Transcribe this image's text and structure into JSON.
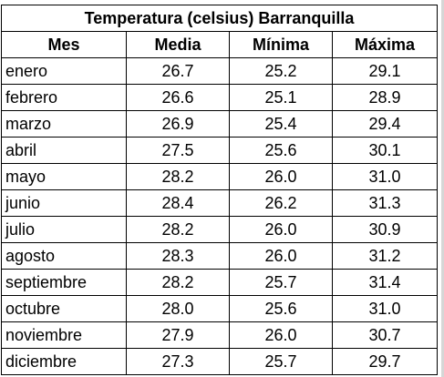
{
  "table": {
    "title": "Temperatura (celsius) Barranquilla",
    "headers": {
      "mes": "Mes",
      "media": "Media",
      "minima": "Mínima",
      "maxima": "Máxima"
    },
    "rows": [
      {
        "mes": "enero",
        "media": "26.7",
        "minima": "25.2",
        "maxima": "29.1"
      },
      {
        "mes": "febrero",
        "media": "26.6",
        "minima": "25.1",
        "maxima": "28.9"
      },
      {
        "mes": "marzo",
        "media": "26.9",
        "minima": "25.4",
        "maxima": "29.4"
      },
      {
        "mes": "abril",
        "media": "27.5",
        "minima": "25.6",
        "maxima": "30.1"
      },
      {
        "mes": "mayo",
        "media": "28.2",
        "minima": "26.0",
        "maxima": "31.0"
      },
      {
        "mes": "junio",
        "media": "28.4",
        "minima": "26.2",
        "maxima": "31.3"
      },
      {
        "mes": "julio",
        "media": "28.2",
        "minima": "26.0",
        "maxima": "30.9"
      },
      {
        "mes": "agosto",
        "media": "28.3",
        "minima": "26.0",
        "maxima": "31.2"
      },
      {
        "mes": "septiembre",
        "media": "28.2",
        "minima": "25.7",
        "maxima": "31.4"
      },
      {
        "mes": "octubre",
        "media": "28.0",
        "minima": "25.6",
        "maxima": "31.0"
      },
      {
        "mes": "noviembre",
        "media": "27.9",
        "minima": "26.0",
        "maxima": "30.7"
      },
      {
        "mes": "diciembre",
        "media": "27.3",
        "minima": "25.7",
        "maxima": "29.7"
      }
    ]
  }
}
